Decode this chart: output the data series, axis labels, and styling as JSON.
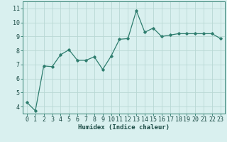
{
  "x": [
    0,
    1,
    2,
    3,
    4,
    5,
    6,
    7,
    8,
    9,
    10,
    11,
    12,
    13,
    14,
    15,
    16,
    17,
    18,
    19,
    20,
    21,
    22,
    23
  ],
  "y": [
    4.3,
    3.7,
    6.9,
    6.85,
    7.7,
    8.05,
    7.3,
    7.3,
    7.55,
    6.65,
    7.6,
    8.8,
    8.85,
    10.85,
    9.3,
    9.6,
    9.0,
    9.1,
    9.2,
    9.2,
    9.2,
    9.2,
    9.2,
    8.85
  ],
  "line_color": "#2e7d6e",
  "marker": "D",
  "marker_size": 1.8,
  "linewidth": 0.9,
  "bg_color": "#d9f0ef",
  "grid_color": "#b8d8d4",
  "xlabel": "Humidex (Indice chaleur)",
  "ylim": [
    3.5,
    11.5
  ],
  "xlim": [
    -0.5,
    23.5
  ],
  "yticks": [
    4,
    5,
    6,
    7,
    8,
    9,
    10,
    11
  ],
  "xticks": [
    0,
    1,
    2,
    3,
    4,
    5,
    6,
    7,
    8,
    9,
    10,
    11,
    12,
    13,
    14,
    15,
    16,
    17,
    18,
    19,
    20,
    21,
    22,
    23
  ],
  "xlabel_fontsize": 6.5,
  "tick_fontsize": 6,
  "font_family": "monospace",
  "xlabel_color": "#1a4a44",
  "axis_label_color": "#1a4a44"
}
